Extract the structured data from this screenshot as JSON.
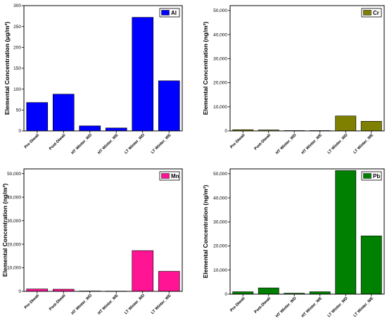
{
  "chart_data": [
    {
      "type": "bar",
      "categories": [
        "Pre-Diwali",
        "Post-Diwali",
        "HT Winter_WD",
        "HT Winter_WE",
        "LT Winter_WD",
        "LT Winter_WE"
      ],
      "series": [
        {
          "name": "Al",
          "values": [
            68,
            88,
            12,
            7,
            272,
            120
          ],
          "color": "#0000ff"
        }
      ],
      "ylabel": "Elemental Concentration (µg/m³)",
      "ylim": [
        0,
        300
      ],
      "yticks": [
        0,
        50,
        100,
        150,
        200,
        250,
        300
      ],
      "yticklabels": [
        "0",
        "50",
        "100",
        "150",
        "200",
        "250",
        "300"
      ],
      "legend": "top-right",
      "grid": false
    },
    {
      "type": "bar",
      "categories": [
        "Pre-Diwali",
        "Post-Diwali",
        "HT Winter_WD",
        "HT Winter_WE",
        "LT Winter_WD",
        "LT Winter_WE"
      ],
      "series": [
        {
          "name": "Cr",
          "values": [
            500,
            400,
            150,
            150,
            6200,
            4000
          ],
          "color": "#808000"
        }
      ],
      "ylabel": "Elemental Concentration (ng/m³)",
      "ylim": [
        0,
        52000
      ],
      "yticks": [
        0,
        10000,
        20000,
        30000,
        40000,
        50000
      ],
      "yticklabels": [
        "0",
        "10,000",
        "20,000",
        "30,000",
        "40,000",
        "50,000"
      ],
      "legend": "top-right",
      "grid": false
    },
    {
      "type": "bar",
      "categories": [
        "Pre-Diwali",
        "Post-Diwali",
        "HT Winter_WD",
        "HT Winter_WE",
        "LT Winter_WD",
        "LT Winter_WE"
      ],
      "series": [
        {
          "name": "Mn",
          "values": [
            1000,
            900,
            150,
            100,
            17300,
            8500
          ],
          "color": "#ff1493"
        }
      ],
      "ylabel": "Elemental Concentration (ng/m³)",
      "ylim": [
        0,
        52000
      ],
      "yticks": [
        0,
        10000,
        20000,
        30000,
        40000,
        50000
      ],
      "yticklabels": [
        "0",
        "10,000",
        "20,000",
        "30,000",
        "40,000",
        "50,000"
      ],
      "legend": "top-right",
      "grid": false
    },
    {
      "type": "bar",
      "categories": [
        "Pre-Diwali",
        "Post-Diwali",
        "HT Winter_WD",
        "HT Winter_WE",
        "LT Winter_WD",
        "LT Winter_WE"
      ],
      "series": [
        {
          "name": "Pb",
          "values": [
            1000,
            2600,
            400,
            1000,
            51300,
            24200
          ],
          "color": "#008000"
        }
      ],
      "ylabel": "Elemental Concentration (ng/m³)",
      "ylim": [
        0,
        52000
      ],
      "yticks": [
        0,
        10000,
        20000,
        30000,
        40000,
        50000
      ],
      "yticklabels": [
        "0",
        "10,000",
        "20,000",
        "30,000",
        "40,000",
        "50,000"
      ],
      "legend": "top-right",
      "grid": false
    }
  ]
}
